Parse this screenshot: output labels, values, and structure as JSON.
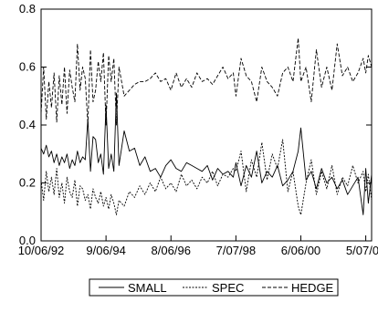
{
  "chart_data": {
    "type": "line",
    "title": "",
    "xlabel": "",
    "ylabel": "",
    "ylim": [
      0.0,
      0.8
    ],
    "yticks": [
      0.0,
      0.2,
      0.4,
      0.6,
      0.8
    ],
    "ytick_labels": [
      "0.0",
      "0.2",
      "0.4",
      "0.6",
      "0.8"
    ],
    "xlim": [
      "1992-10-06",
      "2002-07-09"
    ],
    "xticks": [
      "1992-10-06",
      "1994-09-06",
      "1996-08-06",
      "1998-07-07",
      "2000-06-06",
      "2002-05-07"
    ],
    "xtick_labels": [
      "10/06/92",
      "9/06/94",
      "8/06/96",
      "7/07/98",
      "6/06/00",
      "5/07/02"
    ],
    "legend_position": "bottom-center",
    "series": [
      {
        "name": "SMALL",
        "style": "solid",
        "x": [
          "1992-10-06",
          "1992-11-03",
          "1992-12-01",
          "1992-12-29",
          "1993-01-26",
          "1993-02-23",
          "1993-03-23",
          "1993-04-20",
          "1993-05-18",
          "1993-06-15",
          "1993-07-13",
          "1993-08-10",
          "1993-09-07",
          "1993-10-05",
          "1993-11-02",
          "1993-11-30",
          "1993-12-28",
          "1994-01-25",
          "1994-02-22",
          "1994-03-22",
          "1994-04-19",
          "1994-05-17",
          "1994-06-14",
          "1994-07-12",
          "1994-08-09",
          "1994-09-06",
          "1994-10-04",
          "1994-11-01",
          "1994-11-29",
          "1994-12-27",
          "1995-01-24",
          "1995-03-21",
          "1995-05-16",
          "1995-07-11",
          "1995-09-05",
          "1995-10-31",
          "1995-12-26",
          "1996-02-20",
          "1996-04-16",
          "1996-06-11",
          "1996-08-06",
          "1996-10-01",
          "1996-11-26",
          "1997-01-21",
          "1997-03-18",
          "1997-05-13",
          "1997-07-08",
          "1997-09-02",
          "1997-10-28",
          "1997-12-23",
          "1998-02-17",
          "1998-04-14",
          "1998-06-09",
          "1998-07-07",
          "1998-09-01",
          "1998-10-27",
          "1998-12-22",
          "1999-02-16",
          "1999-04-13",
          "1999-06-08",
          "1999-08-03",
          "1999-09-28",
          "1999-11-23",
          "2000-01-18",
          "2000-03-14",
          "2000-05-09",
          "2000-06-06",
          "2000-08-01",
          "2000-09-26",
          "2000-11-21",
          "2001-01-16",
          "2001-03-13",
          "2001-05-08",
          "2001-07-03",
          "2001-08-28",
          "2001-10-23",
          "2001-12-18",
          "2002-02-12",
          "2002-04-09",
          "2002-05-07",
          "2002-06-04",
          "2002-07-09"
        ],
        "values": [
          0.32,
          0.3,
          0.33,
          0.29,
          0.31,
          0.27,
          0.3,
          0.26,
          0.29,
          0.27,
          0.3,
          0.25,
          0.28,
          0.26,
          0.31,
          0.27,
          0.29,
          0.28,
          0.42,
          0.24,
          0.36,
          0.35,
          0.27,
          0.3,
          0.23,
          0.47,
          0.25,
          0.3,
          0.24,
          0.51,
          0.26,
          0.38,
          0.31,
          0.32,
          0.26,
          0.29,
          0.24,
          0.25,
          0.22,
          0.26,
          0.28,
          0.25,
          0.24,
          0.27,
          0.26,
          0.25,
          0.24,
          0.26,
          0.21,
          0.25,
          0.23,
          0.24,
          0.22,
          0.27,
          0.19,
          0.26,
          0.22,
          0.31,
          0.2,
          0.24,
          0.22,
          0.26,
          0.19,
          0.21,
          0.24,
          0.31,
          0.39,
          0.21,
          0.24,
          0.18,
          0.25,
          0.2,
          0.22,
          0.18,
          0.21,
          0.16,
          0.19,
          0.22,
          0.09,
          0.25,
          0.13,
          0.23
        ]
      },
      {
        "name": "SPEC",
        "style": "dotted",
        "x": [
          "1992-10-06",
          "1992-11-03",
          "1992-12-01",
          "1992-12-29",
          "1993-01-26",
          "1993-02-23",
          "1993-03-23",
          "1993-04-20",
          "1993-05-18",
          "1993-06-15",
          "1993-07-13",
          "1993-08-10",
          "1993-09-07",
          "1993-10-05",
          "1993-11-02",
          "1993-11-30",
          "1993-12-28",
          "1994-01-25",
          "1994-02-22",
          "1994-03-22",
          "1994-04-19",
          "1994-05-17",
          "1994-06-14",
          "1994-07-12",
          "1994-08-09",
          "1994-09-06",
          "1994-10-04",
          "1994-11-01",
          "1994-11-29",
          "1994-12-27",
          "1995-01-24",
          "1995-03-21",
          "1995-05-16",
          "1995-07-11",
          "1995-09-05",
          "1995-10-31",
          "1995-12-26",
          "1996-02-20",
          "1996-04-16",
          "1996-06-11",
          "1996-08-06",
          "1996-10-01",
          "1996-11-26",
          "1997-01-21",
          "1997-03-18",
          "1997-05-13",
          "1997-07-08",
          "1997-09-02",
          "1997-10-28",
          "1997-12-23",
          "1998-02-17",
          "1998-04-14",
          "1998-06-09",
          "1998-07-07",
          "1998-09-01",
          "1998-10-27",
          "1998-12-22",
          "1999-02-16",
          "1999-04-13",
          "1999-06-08",
          "1999-08-03",
          "1999-09-28",
          "1999-11-23",
          "2000-01-18",
          "2000-03-14",
          "2000-05-09",
          "2000-06-06",
          "2000-08-01",
          "2000-09-26",
          "2000-11-21",
          "2001-01-16",
          "2001-03-13",
          "2001-05-08",
          "2001-07-03",
          "2001-08-28",
          "2001-10-23",
          "2001-12-18",
          "2002-02-12",
          "2002-04-09",
          "2002-05-07",
          "2002-06-04",
          "2002-07-09"
        ],
        "values": [
          0.21,
          0.14,
          0.24,
          0.17,
          0.22,
          0.16,
          0.25,
          0.15,
          0.2,
          0.13,
          0.22,
          0.17,
          0.15,
          0.21,
          0.12,
          0.19,
          0.18,
          0.14,
          0.16,
          0.11,
          0.18,
          0.15,
          0.13,
          0.17,
          0.12,
          0.15,
          0.11,
          0.16,
          0.13,
          0.09,
          0.14,
          0.12,
          0.17,
          0.15,
          0.19,
          0.16,
          0.2,
          0.17,
          0.22,
          0.18,
          0.2,
          0.17,
          0.23,
          0.19,
          0.21,
          0.18,
          0.22,
          0.2,
          0.24,
          0.19,
          0.23,
          0.22,
          0.25,
          0.24,
          0.31,
          0.17,
          0.28,
          0.22,
          0.34,
          0.21,
          0.3,
          0.25,
          0.35,
          0.17,
          0.24,
          0.12,
          0.09,
          0.2,
          0.28,
          0.16,
          0.24,
          0.18,
          0.26,
          0.16,
          0.22,
          0.19,
          0.26,
          0.2,
          0.24,
          0.17,
          0.23,
          0.14
        ]
      },
      {
        "name": "HEDGE",
        "style": "dashed",
        "x": [
          "1992-10-06",
          "1992-11-03",
          "1992-12-01",
          "1992-12-29",
          "1993-01-26",
          "1993-02-23",
          "1993-03-23",
          "1993-04-20",
          "1993-05-18",
          "1993-06-15",
          "1993-07-13",
          "1993-08-10",
          "1993-09-07",
          "1993-10-05",
          "1993-11-02",
          "1993-11-30",
          "1993-12-28",
          "1994-01-25",
          "1994-02-22",
          "1994-03-22",
          "1994-04-19",
          "1994-05-17",
          "1994-06-14",
          "1994-07-12",
          "1994-08-09",
          "1994-09-06",
          "1994-10-04",
          "1994-11-01",
          "1994-11-29",
          "1994-12-27",
          "1995-01-24",
          "1995-03-21",
          "1995-05-16",
          "1995-07-11",
          "1995-09-05",
          "1995-10-31",
          "1995-12-26",
          "1996-02-20",
          "1996-04-16",
          "1996-06-11",
          "1996-08-06",
          "1996-10-01",
          "1996-11-26",
          "1997-01-21",
          "1997-03-18",
          "1997-05-13",
          "1997-07-08",
          "1997-09-02",
          "1997-10-28",
          "1997-12-23",
          "1998-02-17",
          "1998-04-14",
          "1998-06-09",
          "1998-07-07",
          "1998-09-01",
          "1998-10-27",
          "1998-12-22",
          "1999-02-16",
          "1999-04-13",
          "1999-06-08",
          "1999-08-03",
          "1999-09-28",
          "1999-11-23",
          "2000-01-18",
          "2000-03-14",
          "2000-05-09",
          "2000-06-06",
          "2000-08-01",
          "2000-09-26",
          "2000-11-21",
          "2001-01-16",
          "2001-03-13",
          "2001-05-08",
          "2001-07-03",
          "2001-08-28",
          "2001-10-23",
          "2001-12-18",
          "2002-02-12",
          "2002-04-09",
          "2002-05-07",
          "2002-06-04",
          "2002-07-09"
        ],
        "values": [
          0.44,
          0.6,
          0.42,
          0.55,
          0.46,
          0.58,
          0.41,
          0.57,
          0.47,
          0.6,
          0.44,
          0.59,
          0.53,
          0.48,
          0.68,
          0.52,
          0.6,
          0.56,
          0.4,
          0.66,
          0.48,
          0.52,
          0.62,
          0.55,
          0.65,
          0.4,
          0.64,
          0.55,
          0.63,
          0.4,
          0.6,
          0.5,
          0.52,
          0.54,
          0.55,
          0.55,
          0.56,
          0.58,
          0.55,
          0.56,
          0.52,
          0.58,
          0.53,
          0.56,
          0.53,
          0.58,
          0.55,
          0.56,
          0.54,
          0.57,
          0.6,
          0.56,
          0.58,
          0.5,
          0.63,
          0.57,
          0.55,
          0.48,
          0.6,
          0.55,
          0.53,
          0.5,
          0.58,
          0.6,
          0.55,
          0.7,
          0.55,
          0.6,
          0.48,
          0.66,
          0.53,
          0.6,
          0.52,
          0.68,
          0.57,
          0.6,
          0.55,
          0.58,
          0.63,
          0.58,
          0.64,
          0.6
        ]
      }
    ]
  }
}
